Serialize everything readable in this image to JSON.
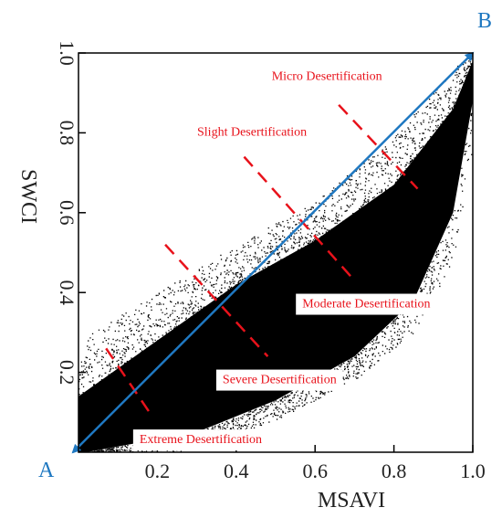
{
  "chart_data": {
    "type": "scatter",
    "xlabel": "MSAVI",
    "ylabel": "SWCI",
    "xlim": [
      0,
      1
    ],
    "ylim": [
      0,
      1
    ],
    "x_ticks": [
      "0.2",
      "0.4",
      "0.6",
      "0.8",
      "1.0"
    ],
    "x_tick_values": [
      0.2,
      0.4,
      0.6,
      0.8,
      1.0
    ],
    "y_ticks": [
      "0.2",
      "0.4",
      "0.6",
      "0.8",
      "1.0"
    ],
    "y_tick_values": [
      0.2,
      0.4,
      0.6,
      0.8,
      1.0
    ],
    "scatter_band": {
      "upper_edge": [
        [
          0,
          0.28
        ],
        [
          0.2,
          0.4
        ],
        [
          0.4,
          0.52
        ],
        [
          0.6,
          0.63
        ],
        [
          0.8,
          0.79
        ],
        [
          0.95,
          0.96
        ],
        [
          1.0,
          1.0
        ]
      ],
      "dense_upper": [
        [
          0,
          0.14
        ],
        [
          0.2,
          0.28
        ],
        [
          0.4,
          0.42
        ],
        [
          0.6,
          0.53
        ],
        [
          0.8,
          0.67
        ],
        [
          0.95,
          0.86
        ],
        [
          1.0,
          0.98
        ]
      ],
      "dense_lower": [
        [
          0.02,
          0.0
        ],
        [
          0.3,
          0.05
        ],
        [
          0.5,
          0.13
        ],
        [
          0.7,
          0.24
        ],
        [
          0.85,
          0.38
        ],
        [
          0.95,
          0.6
        ],
        [
          1.0,
          0.88
        ]
      ],
      "lower_edge": [
        [
          0.25,
          0.0
        ],
        [
          0.5,
          0.08
        ],
        [
          0.7,
          0.18
        ],
        [
          0.85,
          0.3
        ],
        [
          0.95,
          0.48
        ],
        [
          1.0,
          0.75
        ]
      ]
    },
    "diagonal_arrow": {
      "start_label": "A",
      "end_label": "B",
      "from": [
        0,
        0
      ],
      "to": [
        1,
        1
      ],
      "color": "#1f78c1"
    },
    "divider_lines": [
      {
        "from": [
          0.07,
          0.26
        ],
        "to": [
          0.18,
          0.1
        ]
      },
      {
        "from": [
          0.22,
          0.52
        ],
        "to": [
          0.48,
          0.24
        ]
      },
      {
        "from": [
          0.42,
          0.74
        ],
        "to": [
          0.7,
          0.43
        ]
      },
      {
        "from": [
          0.66,
          0.87
        ],
        "to": [
          0.86,
          0.66
        ]
      }
    ],
    "divider_color": "#e8121b",
    "annotations": [
      {
        "text": "Micro Desertification",
        "x": 0.63,
        "y": 0.94
      },
      {
        "text": "Slight Desertification",
        "x": 0.44,
        "y": 0.8
      },
      {
        "text": "Moderate Desertification",
        "x": 0.73,
        "y": 0.37
      },
      {
        "text": "Severe Desertification",
        "x": 0.51,
        "y": 0.18
      },
      {
        "text": "Extreme Desertification",
        "x": 0.31,
        "y": 0.03
      }
    ],
    "annotation_color": "#e8121b",
    "grid": false,
    "point_color": "#000000"
  }
}
